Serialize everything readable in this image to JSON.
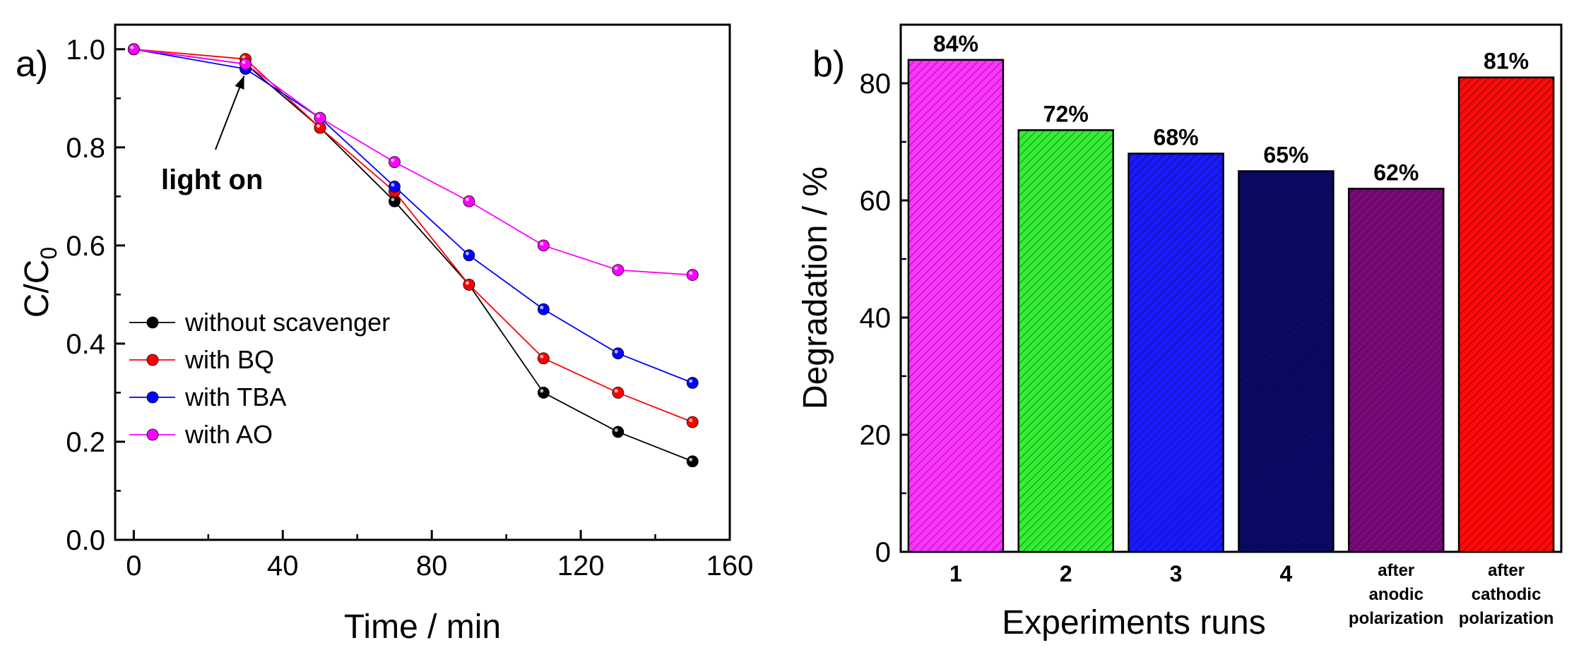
{
  "chart_data": [
    {
      "type": "line",
      "panel_label": "a)",
      "xlabel": "Time / min",
      "ylabel_main": "C/C",
      "ylabel_sub": "0",
      "xlim": [
        -5,
        160
      ],
      "ylim": [
        0,
        1.05
      ],
      "xticks": [
        0,
        40,
        80,
        120,
        160
      ],
      "xtick_labels": [
        "0",
        "40",
        "80",
        "120",
        "160"
      ],
      "yticks": [
        0,
        0.2,
        0.4,
        0.6,
        0.8,
        1.0
      ],
      "ytick_labels": [
        "0.0",
        "0.2",
        "0.4",
        "0.6",
        "0.8",
        "1.0"
      ],
      "grid": false,
      "legend_position": "lower-left",
      "x": [
        0,
        30,
        50,
        70,
        90,
        110,
        130,
        150
      ],
      "series": [
        {
          "name": "without scavenger",
          "color": "#000000",
          "values": [
            1.0,
            0.97,
            0.84,
            0.69,
            0.52,
            0.3,
            0.22,
            0.16
          ]
        },
        {
          "name": "with BQ",
          "color": "#ff0000",
          "values": [
            1.0,
            0.98,
            0.84,
            0.71,
            0.52,
            0.37,
            0.3,
            0.24
          ]
        },
        {
          "name": "with TBA",
          "color": "#0000ff",
          "values": [
            1.0,
            0.96,
            0.86,
            0.72,
            0.58,
            0.47,
            0.38,
            0.32
          ]
        },
        {
          "name": "with AO",
          "color": "#ff00ff",
          "values": [
            1.0,
            0.97,
            0.86,
            0.77,
            0.69,
            0.6,
            0.55,
            0.54
          ]
        }
      ],
      "annotation": {
        "text": "light on",
        "arrow_to_x": 30,
        "arrow_to_y": 0.96
      }
    },
    {
      "type": "bar",
      "panel_label": "b)",
      "xlabel": "Experiments runs",
      "ylabel": "Degradation / %",
      "ylim": [
        0,
        90
      ],
      "yticks": [
        0,
        20,
        40,
        60,
        80
      ],
      "ytick_labels": [
        "0",
        "20",
        "40",
        "60",
        "80"
      ],
      "grid": false,
      "categories": [
        {
          "lines": [
            "1"
          ],
          "small": false
        },
        {
          "lines": [
            "2"
          ],
          "small": false
        },
        {
          "lines": [
            "3"
          ],
          "small": false
        },
        {
          "lines": [
            "4"
          ],
          "small": false
        },
        {
          "lines": [
            "after",
            "anodic",
            "polarization"
          ],
          "small": true
        },
        {
          "lines": [
            "after",
            "cathodic",
            "polarization"
          ],
          "small": true
        }
      ],
      "values": [
        84,
        72,
        68,
        65,
        62,
        81
      ],
      "value_labels": [
        "84%",
        "72%",
        "68%",
        "65%",
        "62%",
        "81%"
      ],
      "colors": [
        "#ff33ff",
        "#33ee33",
        "#1a1aff",
        "#0a0a66",
        "#7a0a7a",
        "#ff0a0a"
      ],
      "hatch": "diagonal"
    }
  ]
}
